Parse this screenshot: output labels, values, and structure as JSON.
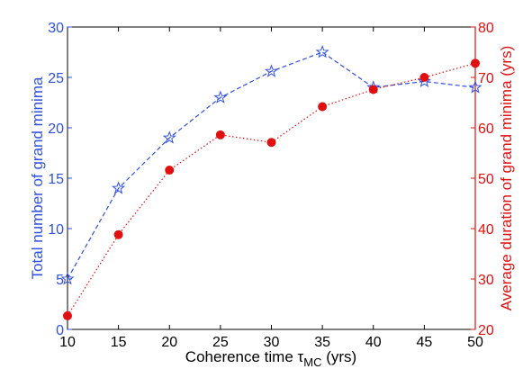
{
  "chart_data": {
    "type": "line",
    "xlabel_main": "Coherence time ",
    "xlabel_symbol": "τ",
    "xlabel_subscript": "MC",
    "xlabel_units": " (yrs)",
    "ylabel_left": "Total number of grand minima",
    "ylabel_right": "Average duration of grand minima (yrs)",
    "x": [
      10,
      15,
      20,
      25,
      30,
      35,
      40,
      45,
      50
    ],
    "xlim": [
      10,
      50
    ],
    "xticks": [
      "10",
      "15",
      "20",
      "25",
      "30",
      "35",
      "40",
      "45",
      "50"
    ],
    "ylim_left": [
      0,
      30
    ],
    "yticks_left": [
      "0",
      "5",
      "10",
      "15",
      "20",
      "25",
      "30"
    ],
    "ylim_right": [
      20,
      80
    ],
    "yticks_right": [
      "20",
      "30",
      "40",
      "50",
      "60",
      "70",
      "80"
    ],
    "grid": false,
    "series": [
      {
        "axis": "left",
        "values": [
          5,
          14,
          19,
          23,
          25.6,
          27.5,
          24,
          24.6,
          24
        ],
        "color": "#3050e0",
        "line": "dashed",
        "marker": "star-open"
      },
      {
        "axis": "right",
        "values": [
          22.7,
          38.8,
          51.6,
          58.6,
          57.1,
          64.2,
          67.6,
          70,
          72.8
        ],
        "color": "#e01010",
        "line": "dotted",
        "marker": "circle-filled"
      }
    ]
  }
}
